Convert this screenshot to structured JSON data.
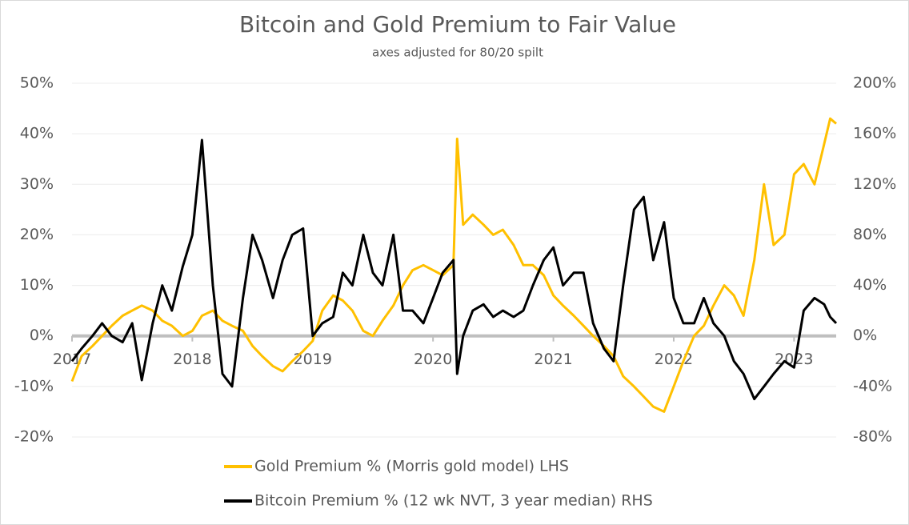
{
  "chart_data": {
    "type": "line",
    "title": "Bitcoin and Gold Premium to Fair Value",
    "subtitle": "axes adjusted for 80/20 spilt",
    "x": [
      2017.0,
      2017.08,
      2017.17,
      2017.25,
      2017.33,
      2017.42,
      2017.5,
      2017.58,
      2017.67,
      2017.75,
      2017.83,
      2017.92,
      2018.0,
      2018.08,
      2018.17,
      2018.25,
      2018.33,
      2018.42,
      2018.5,
      2018.58,
      2018.67,
      2018.75,
      2018.83,
      2018.92,
      2019.0,
      2019.08,
      2019.17,
      2019.25,
      2019.33,
      2019.42,
      2019.5,
      2019.58,
      2019.67,
      2019.75,
      2019.83,
      2019.92,
      2020.0,
      2020.08,
      2020.17,
      2020.2,
      2020.25,
      2020.33,
      2020.42,
      2020.5,
      2020.58,
      2020.67,
      2020.75,
      2020.83,
      2020.92,
      2021.0,
      2021.08,
      2021.17,
      2021.25,
      2021.33,
      2021.42,
      2021.5,
      2021.58,
      2021.67,
      2021.75,
      2021.83,
      2021.92,
      2022.0,
      2022.08,
      2022.17,
      2022.25,
      2022.33,
      2022.42,
      2022.5,
      2022.58,
      2022.67,
      2022.75,
      2022.83,
      2022.92,
      2023.0,
      2023.08,
      2023.17,
      2023.25,
      2023.3,
      2023.35
    ],
    "series": [
      {
        "name": "Gold Premium % (Morris gold model) LHS",
        "color": "#ffc000",
        "axis": "y",
        "values": [
          -9,
          -4,
          -2,
          0,
          2,
          4,
          5,
          6,
          5,
          3,
          2,
          0,
          1,
          4,
          5,
          3,
          2,
          1,
          -2,
          -4,
          -6,
          -7,
          -5,
          -3,
          -1,
          5,
          8,
          7,
          5,
          1,
          0,
          3,
          6,
          10,
          13,
          14,
          13,
          12,
          14,
          39,
          22,
          24,
          22,
          20,
          21,
          18,
          14,
          14,
          12,
          8,
          6,
          4,
          2,
          0,
          -2,
          -4,
          -8,
          -10,
          -12,
          -14,
          -15,
          -10,
          -5,
          0,
          2,
          6,
          10,
          8,
          4,
          15,
          30,
          18,
          20,
          32,
          34,
          30,
          38,
          43,
          42
        ]
      },
      {
        "name": "Bitcoin Premium % (12 wk NVT, 3 year median) RHS",
        "color": "#000000",
        "axis": "y2",
        "values": [
          -20,
          -10,
          0,
          10,
          0,
          -5,
          10,
          -35,
          10,
          40,
          20,
          55,
          80,
          155,
          40,
          -30,
          -40,
          30,
          80,
          60,
          30,
          60,
          80,
          85,
          0,
          10,
          15,
          50,
          40,
          80,
          50,
          40,
          80,
          20,
          20,
          10,
          30,
          50,
          60,
          -30,
          0,
          20,
          25,
          15,
          20,
          15,
          20,
          40,
          60,
          70,
          40,
          50,
          50,
          10,
          -10,
          -20,
          40,
          100,
          110,
          60,
          90,
          30,
          10,
          10,
          30,
          10,
          0,
          -20,
          -30,
          -50,
          -40,
          -30,
          -20,
          -25,
          20,
          30,
          25,
          15,
          10
        ]
      }
    ],
    "xlim": [
      2017,
      2023.35
    ],
    "xticks": [
      2017,
      2018,
      2019,
      2020,
      2021,
      2022,
      2023
    ],
    "ylim": [
      -20,
      50
    ],
    "yticks": [
      {
        "value": -20,
        "label": "-20%"
      },
      {
        "value": -10,
        "label": "-10%"
      },
      {
        "value": 0,
        "label": "0%"
      },
      {
        "value": 10,
        "label": "10%"
      },
      {
        "value": 20,
        "label": "20%"
      },
      {
        "value": 30,
        "label": "30%"
      },
      {
        "value": 40,
        "label": "40%"
      },
      {
        "value": 50,
        "label": "50%"
      }
    ],
    "y2lim": [
      -80,
      200
    ],
    "y2ticks": [
      {
        "value": -80,
        "label": "-80%"
      },
      {
        "value": -40,
        "label": "-40%"
      },
      {
        "value": 0,
        "label": "0%"
      },
      {
        "value": 40,
        "label": "40%"
      },
      {
        "value": 80,
        "label": "80%"
      },
      {
        "value": 120,
        "label": "120%"
      },
      {
        "value": 160,
        "label": "160%"
      },
      {
        "value": 200,
        "label": "200%"
      }
    ],
    "grid": true,
    "legend": "bottom"
  }
}
